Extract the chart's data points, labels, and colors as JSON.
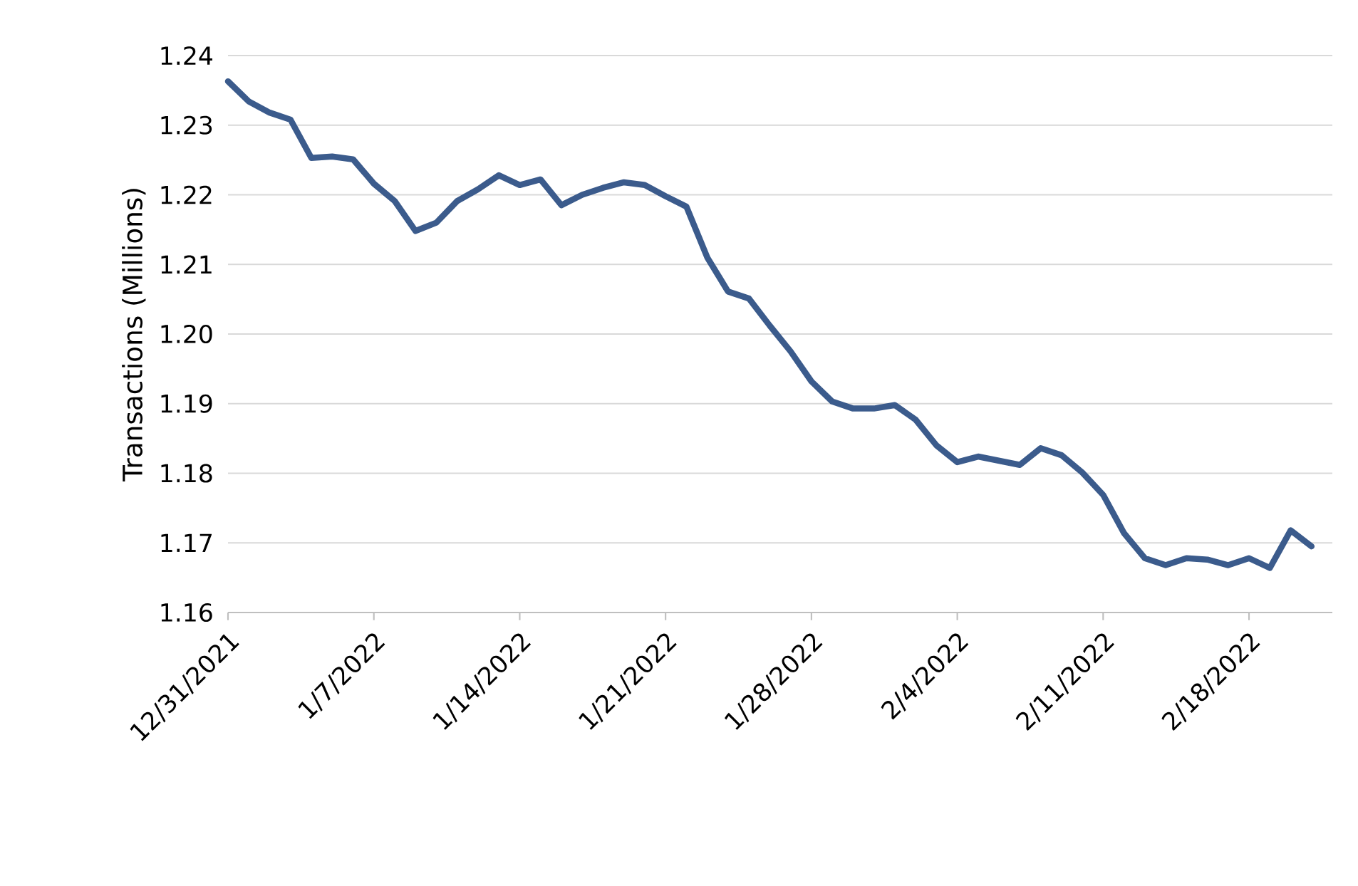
{
  "chart_data": {
    "type": "line",
    "ylabel": "Transactions (Millions)",
    "x": [
      "2021-12-31",
      "2022-01-01",
      "2022-01-02",
      "2022-01-03",
      "2022-01-04",
      "2022-01-05",
      "2022-01-06",
      "2022-01-07",
      "2022-01-08",
      "2022-01-09",
      "2022-01-10",
      "2022-01-11",
      "2022-01-12",
      "2022-01-13",
      "2022-01-14",
      "2022-01-15",
      "2022-01-16",
      "2022-01-17",
      "2022-01-18",
      "2022-01-19",
      "2022-01-20",
      "2022-01-21",
      "2022-01-22",
      "2022-01-23",
      "2022-01-24",
      "2022-01-25",
      "2022-01-26",
      "2022-01-27",
      "2022-01-28",
      "2022-01-29",
      "2022-01-30",
      "2022-01-31",
      "2022-02-01",
      "2022-02-02",
      "2022-02-03",
      "2022-02-04",
      "2022-02-05",
      "2022-02-06",
      "2022-02-07",
      "2022-02-08",
      "2022-02-09",
      "2022-02-10",
      "2022-02-11",
      "2022-02-12",
      "2022-02-13",
      "2022-02-14",
      "2022-02-15",
      "2022-02-16",
      "2022-02-17",
      "2022-02-18",
      "2022-02-19",
      "2022-02-20",
      "2022-02-21"
    ],
    "series": [
      {
        "color": "#3b5b8c",
        "values": [
          1.2363,
          1.2334,
          1.2318,
          1.2308,
          1.2253,
          1.2255,
          1.2251,
          1.2216,
          1.2191,
          1.2148,
          1.216,
          1.2191,
          1.2208,
          1.2228,
          1.2214,
          1.2222,
          1.2185,
          1.22,
          1.221,
          1.2218,
          1.2214,
          1.2198,
          1.2183,
          1.211,
          1.2061,
          1.2051,
          1.2012,
          1.1975,
          1.1932,
          1.1903,
          1.1893,
          1.1893,
          1.1898,
          1.1877,
          1.184,
          1.1816,
          1.1824,
          1.1818,
          1.1812,
          1.1836,
          1.1826,
          1.1801,
          1.1769,
          1.1714,
          1.1678,
          1.1668,
          1.1678,
          1.1676,
          1.1668,
          1.1678,
          1.1664,
          1.1718,
          1.1695
        ]
      }
    ],
    "xlim": [
      "2021-12-31",
      "2022-02-22"
    ],
    "xticks": [
      {
        "value": "2021-12-31",
        "label": "12/31/2021"
      },
      {
        "value": "2022-01-07",
        "label": "1/7/2022"
      },
      {
        "value": "2022-01-14",
        "label": "1/14/2022"
      },
      {
        "value": "2022-01-21",
        "label": "1/21/2022"
      },
      {
        "value": "2022-01-28",
        "label": "1/28/2022"
      },
      {
        "value": "2022-02-04",
        "label": "2/4/2022"
      },
      {
        "value": "2022-02-11",
        "label": "2/11/2022"
      },
      {
        "value": "2022-02-18",
        "label": "2/18/2022"
      }
    ],
    "ylim": [
      1.16,
      1.24
    ],
    "yticks": [
      {
        "value": 1.16,
        "label": "1.16"
      },
      {
        "value": 1.17,
        "label": "1.17"
      },
      {
        "value": 1.18,
        "label": "1.18"
      },
      {
        "value": 1.19,
        "label": "1.19"
      },
      {
        "value": 1.2,
        "label": "1.20"
      },
      {
        "value": 1.21,
        "label": "1.21"
      },
      {
        "value": 1.22,
        "label": "1.22"
      },
      {
        "value": 1.23,
        "label": "1.23"
      },
      {
        "value": 1.24,
        "label": "1.24"
      }
    ],
    "grid": "y",
    "marker": "none",
    "line_style": "solid"
  }
}
